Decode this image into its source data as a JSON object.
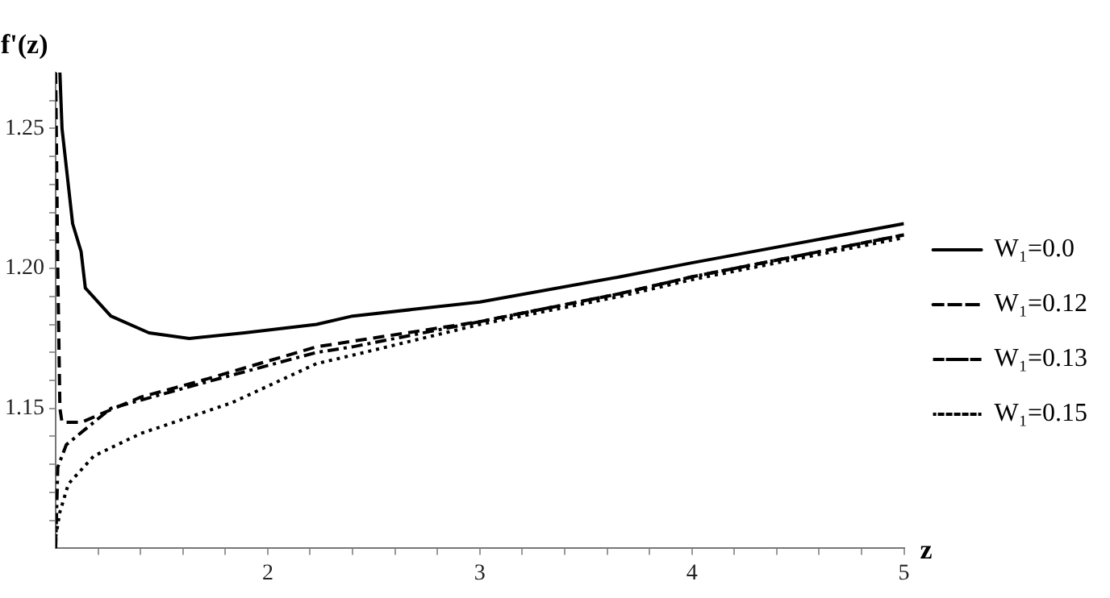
{
  "chart_data": {
    "type": "line",
    "xlabel": "z",
    "ylabel": "f'(z)",
    "xlim": [
      1,
      5
    ],
    "ylim": [
      1.1,
      1.27
    ],
    "xticks": [
      {
        "value": 1.2,
        "label": null
      },
      {
        "value": 1.4,
        "label": null
      },
      {
        "value": 1.6,
        "label": null
      },
      {
        "value": 1.8,
        "label": null
      },
      2,
      {
        "value": 2.2,
        "label": null
      },
      {
        "value": 2.4,
        "label": null
      },
      {
        "value": 2.6,
        "label": null
      },
      {
        "value": 2.8,
        "label": null
      },
      3,
      {
        "value": 3.2,
        "label": null
      },
      {
        "value": 3.4,
        "label": null
      },
      {
        "value": 3.6,
        "label": null
      },
      {
        "value": 3.8,
        "label": null
      },
      4,
      {
        "value": 4.2,
        "label": null
      },
      {
        "value": 4.4,
        "label": null
      },
      {
        "value": 4.6,
        "label": null
      },
      {
        "value": 4.8,
        "label": null
      },
      5
    ],
    "yticks": [
      {
        "value": 1.11,
        "label": null
      },
      {
        "value": 1.12,
        "label": null
      },
      {
        "value": 1.13,
        "label": null
      },
      {
        "value": 1.14,
        "label": null
      },
      1.15,
      {
        "value": 1.16,
        "label": null
      },
      {
        "value": 1.17,
        "label": null
      },
      {
        "value": 1.18,
        "label": null
      },
      {
        "value": 1.19,
        "label": null
      },
      {
        "value": 1.2,
        "label": "1.20"
      },
      {
        "value": 1.21,
        "label": null
      },
      {
        "value": 1.22,
        "label": null
      },
      {
        "value": 1.23,
        "label": null
      },
      {
        "value": 1.24,
        "label": null
      },
      1.25,
      {
        "value": 1.26,
        "label": null
      }
    ],
    "grid": false,
    "legend": "right",
    "marker": "none",
    "series": [
      {
        "name": "W₁=0.0",
        "color": "#000000",
        "line_style": "solid",
        "x": [
          1.02,
          1.03,
          1.08,
          1.12,
          1.14,
          1.26,
          1.44,
          1.63,
          1.89,
          2.23,
          2.4,
          3,
          3.66,
          4,
          5
        ],
        "values": [
          1.27,
          1.25,
          1.216,
          1.206,
          1.193,
          1.183,
          1.177,
          1.175,
          1.177,
          1.18,
          1.183,
          1.188,
          1.197,
          1.202,
          1.216
        ]
      },
      {
        "name": "W₁=0.12",
        "color": "#000000",
        "line_style": "dashed",
        "x": [
          1.0,
          1.01,
          1.02,
          1.03,
          1.12,
          1.4,
          1.69,
          2.23,
          2.4,
          3,
          3.66,
          4,
          5
        ],
        "values": [
          1.27,
          1.2,
          1.15,
          1.145,
          1.145,
          1.154,
          1.16,
          1.172,
          1.174,
          1.181,
          1.191,
          1.197,
          1.212
        ]
      },
      {
        "name": "W₁=0.13",
        "color": "#000000",
        "line_style": "dashdot",
        "x": [
          1.0,
          1.01,
          1.05,
          1.26,
          1.69,
          2.23,
          2.4,
          3,
          3.66,
          4,
          5
        ],
        "values": [
          1.1,
          1.129,
          1.137,
          1.15,
          1.159,
          1.17,
          1.172,
          1.181,
          1.191,
          1.197,
          1.212
        ]
      },
      {
        "name": "W₁=0.15",
        "color": "#000000",
        "line_style": "dotted",
        "x": [
          1.0,
          1.02,
          1.06,
          1.18,
          1.4,
          1.83,
          2.23,
          2.4,
          3,
          3.66,
          4,
          5
        ],
        "values": [
          1.104,
          1.113,
          1.123,
          1.133,
          1.141,
          1.152,
          1.166,
          1.169,
          1.18,
          1.19,
          1.196,
          1.211
        ]
      }
    ]
  }
}
